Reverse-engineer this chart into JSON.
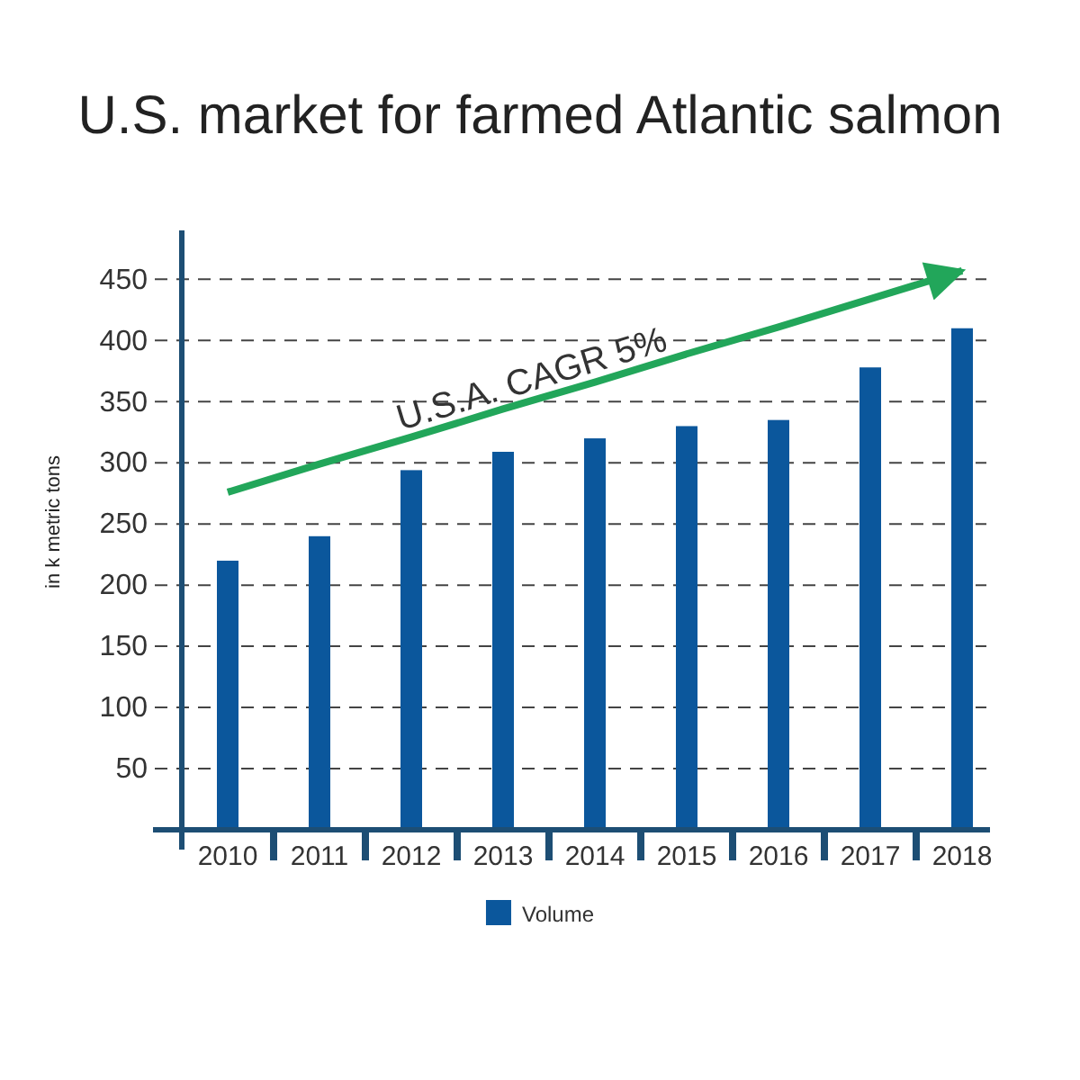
{
  "chart_data": {
    "type": "bar",
    "title": "U.S. market for farmed Atlantic salmon",
    "ylabel": "in k metric tons",
    "categories": [
      "2010",
      "2011",
      "2012",
      "2013",
      "2014",
      "2015",
      "2016",
      "2017",
      "2018"
    ],
    "series": [
      {
        "name": "Volume",
        "color": "#0b579c",
        "values": [
          220,
          240,
          294,
          309,
          320,
          330,
          335,
          378,
          410
        ]
      },
      {
        "type": "line",
        "values": [
          276,
          299,
          321,
          344,
          366,
          389,
          411,
          434,
          457
        ],
        "color": "#22a65a"
      }
    ],
    "ylim": [
      0,
      490
    ],
    "yticks": [
      50,
      100,
      150,
      200,
      250,
      300,
      350,
      400,
      450
    ],
    "grid": "y",
    "legend": "bottom",
    "annotations": [
      {
        "text": "U.S.A. CAGR 5%",
        "x": "2013",
        "y": 344
      }
    ]
  }
}
